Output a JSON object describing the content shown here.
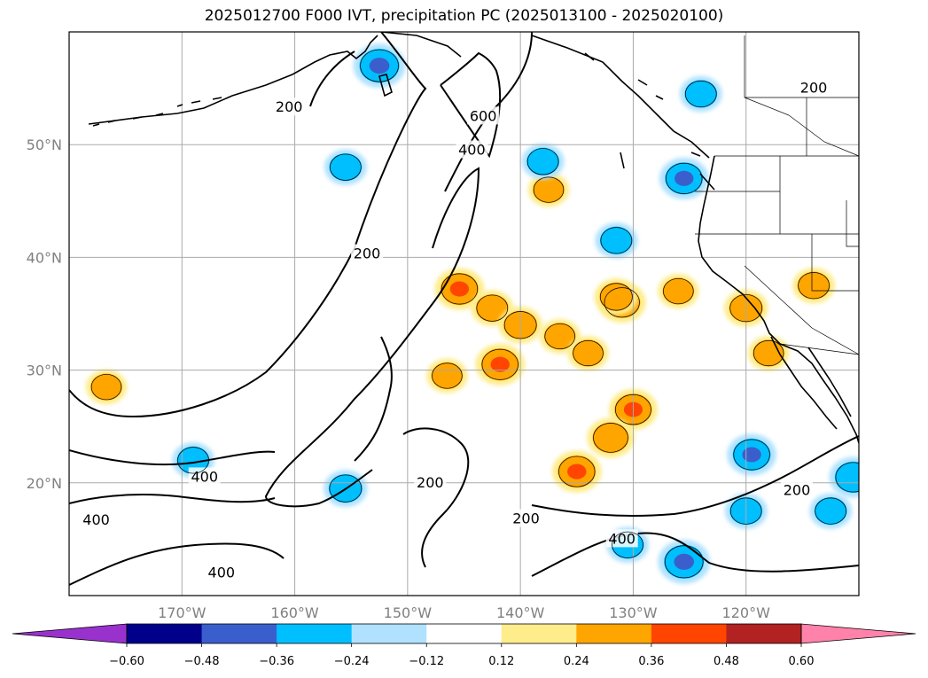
{
  "chart_data": {
    "type": "heatmap",
    "title": "2025012700 F000 IVT, precipitation PC (2025013100 - 2025020100)",
    "map": {
      "lon_range": [
        -180,
        -110
      ],
      "lat_range": [
        10,
        60
      ],
      "lon_ticks": [
        -170,
        -160,
        -150,
        -140,
        -130,
        -120
      ],
      "lon_tick_labels": [
        "170°W",
        "160°W",
        "150°W",
        "140°W",
        "130°W",
        "120°W"
      ],
      "lat_ticks": [
        20,
        30,
        40,
        50
      ],
      "lat_tick_labels": [
        "20°N",
        "30°N",
        "40°N",
        "50°N"
      ],
      "grid": true
    },
    "colorbar": {
      "orientation": "horizontal",
      "extend": "both",
      "levels": [
        -0.6,
        -0.48,
        -0.36,
        -0.24,
        -0.12,
        0.12,
        0.24,
        0.36,
        0.48,
        0.6
      ],
      "tick_labels": [
        "−0.60",
        "−0.48",
        "−0.36",
        "−0.24",
        "−0.12",
        "0.12",
        "0.24",
        "0.36",
        "0.48",
        "0.60"
      ],
      "colors": [
        "#9932cc",
        "#00008b",
        "#3a5fcd",
        "#00bfff",
        "#b0e2ff",
        "#ffffff",
        "#ffec8b",
        "#ffa500",
        "#ff4500",
        "#b22222",
        "#ff82ab"
      ]
    },
    "contour_labels": [
      {
        "text": "200",
        "lon": -160.5,
        "lat": 53.3
      },
      {
        "text": "600",
        "lon": -143.3,
        "lat": 52.5
      },
      {
        "text": "400",
        "lon": -144.3,
        "lat": 49.5
      },
      {
        "text": "200",
        "lon": -114.0,
        "lat": 55.0
      },
      {
        "text": "200",
        "lon": -153.6,
        "lat": 40.3
      },
      {
        "text": "400",
        "lon": -177.6,
        "lat": 16.7
      },
      {
        "text": "400",
        "lon": -168.0,
        "lat": 20.5
      },
      {
        "text": "400",
        "lon": -166.5,
        "lat": 12.0
      },
      {
        "text": "200",
        "lon": -148.0,
        "lat": 20.0
      },
      {
        "text": "200",
        "lon": -139.5,
        "lat": 16.8
      },
      {
        "text": "400",
        "lon": -131.0,
        "lat": 15.0
      },
      {
        "text": "200",
        "lon": -115.5,
        "lat": 19.3
      }
    ],
    "positive_anomalies": [
      {
        "lon": -176.7,
        "lat": 28.5,
        "value": 0.26
      },
      {
        "lon": -145.4,
        "lat": 37.2,
        "value": 0.38
      },
      {
        "lon": -142.5,
        "lat": 35.5,
        "value": 0.28
      },
      {
        "lon": -140.0,
        "lat": 34.0,
        "value": 0.3
      },
      {
        "lon": -136.5,
        "lat": 33.0,
        "value": 0.26
      },
      {
        "lon": -141.8,
        "lat": 30.5,
        "value": 0.38
      },
      {
        "lon": -146.5,
        "lat": 29.5,
        "value": 0.26
      },
      {
        "lon": -137.5,
        "lat": 46.0,
        "value": 0.26
      },
      {
        "lon": -131.0,
        "lat": 36.0,
        "value": 0.36
      },
      {
        "lon": -131.5,
        "lat": 36.5,
        "value": 0.3
      },
      {
        "lon": -130.0,
        "lat": 26.5,
        "value": 0.37
      },
      {
        "lon": -135.0,
        "lat": 21.0,
        "value": 0.38
      },
      {
        "lon": -132.0,
        "lat": 24.0,
        "value": 0.35
      },
      {
        "lon": -134.0,
        "lat": 31.5,
        "value": 0.26
      },
      {
        "lon": -120.0,
        "lat": 35.5,
        "value": 0.3
      },
      {
        "lon": -118.0,
        "lat": 31.5,
        "value": 0.26
      },
      {
        "lon": -114.0,
        "lat": 37.5,
        "value": 0.28
      },
      {
        "lon": -126.0,
        "lat": 37.0,
        "value": 0.26
      }
    ],
    "negative_anomalies": [
      {
        "lon": -152.5,
        "lat": 57.0,
        "value": -0.42
      },
      {
        "lon": -155.5,
        "lat": 48.0,
        "value": -0.28
      },
      {
        "lon": -138.0,
        "lat": 48.5,
        "value": -0.28
      },
      {
        "lon": -125.5,
        "lat": 47.0,
        "value": -0.38
      },
      {
        "lon": -169.0,
        "lat": 22.0,
        "value": -0.28
      },
      {
        "lon": -155.5,
        "lat": 19.5,
        "value": -0.3
      },
      {
        "lon": -125.5,
        "lat": 13.0,
        "value": -0.42
      },
      {
        "lon": -130.5,
        "lat": 14.5,
        "value": -0.28
      },
      {
        "lon": -119.5,
        "lat": 22.5,
        "value": -0.38
      },
      {
        "lon": -112.5,
        "lat": 17.5,
        "value": -0.28
      },
      {
        "lon": -110.5,
        "lat": 20.5,
        "value": -0.36
      },
      {
        "lon": -120.0,
        "lat": 17.5,
        "value": -0.28
      },
      {
        "lon": -131.5,
        "lat": 41.5,
        "value": -0.28
      },
      {
        "lon": -124.0,
        "lat": 54.5,
        "value": -0.28
      }
    ]
  }
}
